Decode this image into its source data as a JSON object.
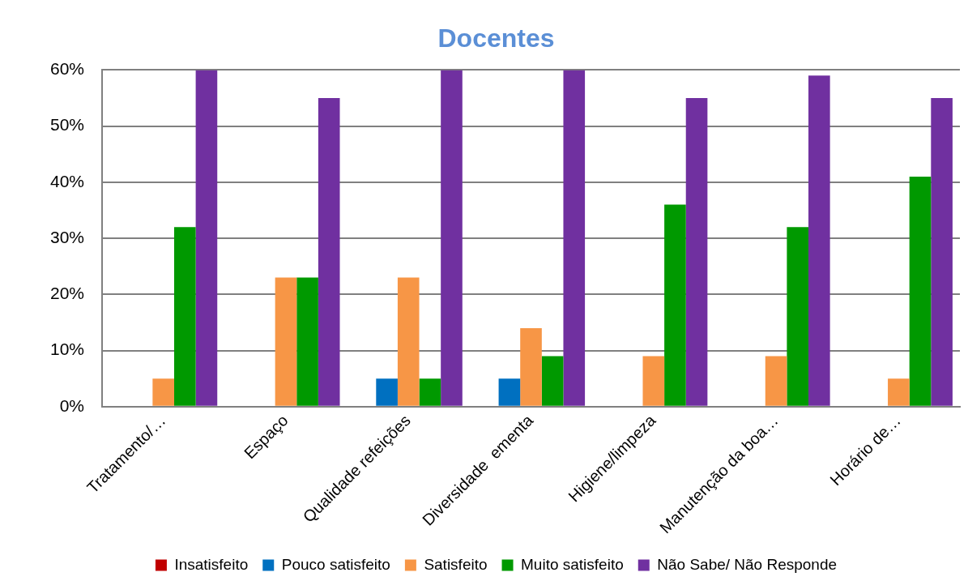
{
  "chart_data": {
    "type": "bar",
    "title": "Docentes",
    "categories": [
      "Tratamento/…",
      "Espaço",
      "Qualidade refeições",
      "Diversidade  ementa",
      "Higiene/limpeza",
      "Manutenção da boa…",
      "Horário de…"
    ],
    "series": [
      {
        "name": "Insatisfeito",
        "color": "#c00000",
        "values": [
          0,
          0,
          0,
          0,
          0,
          0,
          0
        ]
      },
      {
        "name": "Pouco satisfeito",
        "color": "#0070c0",
        "values": [
          0,
          0,
          5,
          5,
          0,
          0,
          0
        ]
      },
      {
        "name": "Satisfeito",
        "color": "#f79646",
        "values": [
          5,
          23,
          23,
          14,
          9,
          9,
          5
        ]
      },
      {
        "name": "Muito satisfeito",
        "color": "#009900",
        "values": [
          32,
          23,
          5,
          9,
          36,
          32,
          41
        ]
      },
      {
        "name": "Não Sabe/ Não Responde",
        "color": "#7030a0",
        "values": [
          60,
          55,
          60,
          60,
          55,
          59,
          55
        ]
      }
    ],
    "ylim": [
      0,
      60
    ],
    "yticks": [
      {
        "value": 0,
        "label": "0%"
      },
      {
        "value": 10,
        "label": "10%"
      },
      {
        "value": 20,
        "label": "20%"
      },
      {
        "value": 30,
        "label": "30%"
      },
      {
        "value": 40,
        "label": "40%"
      },
      {
        "value": 50,
        "label": "50%"
      },
      {
        "value": 60,
        "label": "60%"
      }
    ],
    "grid": "y",
    "legend": "bottom"
  }
}
